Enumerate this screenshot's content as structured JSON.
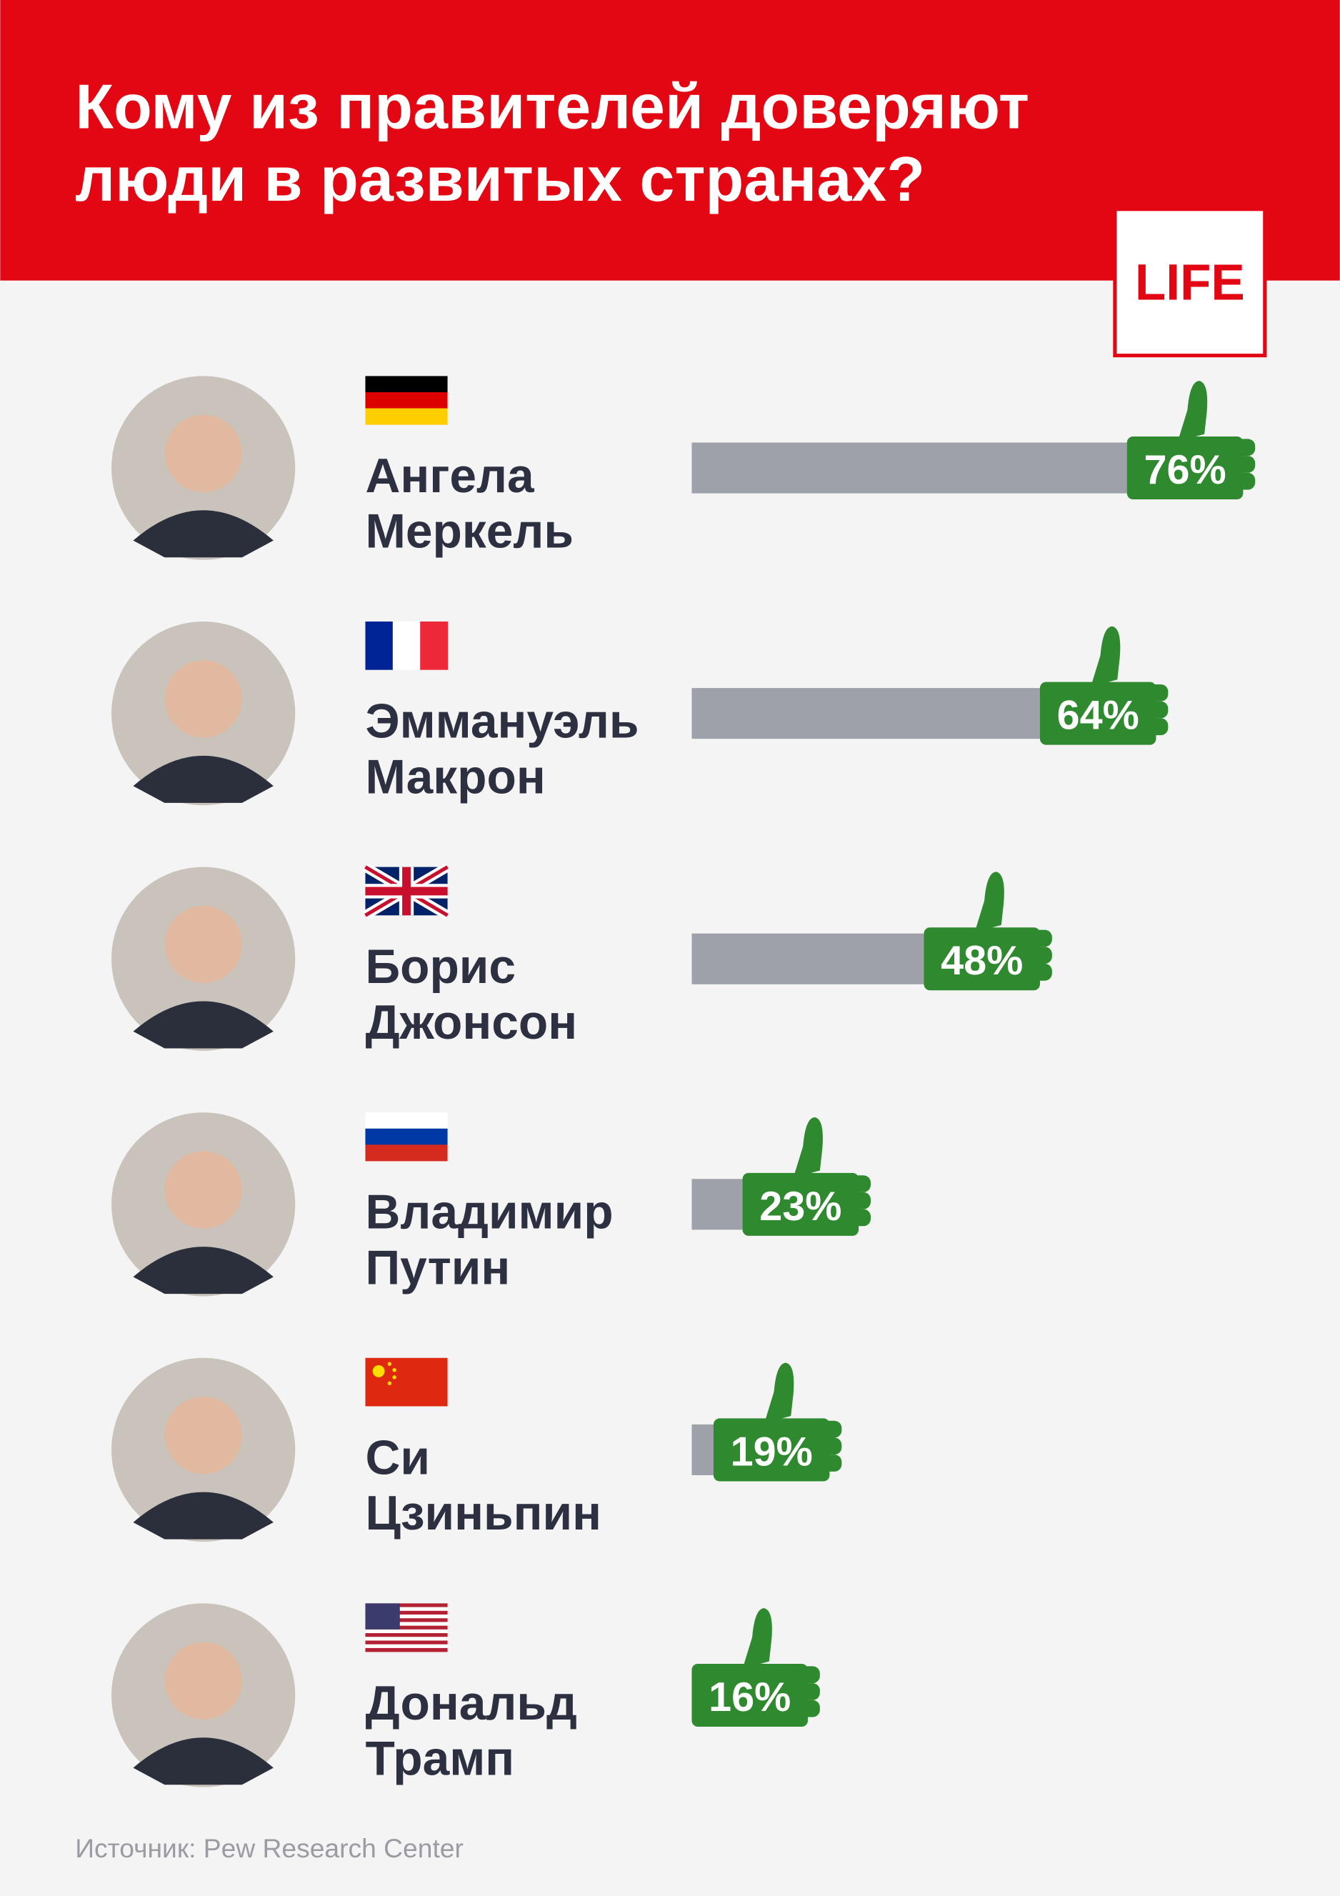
{
  "chart_data": {
    "type": "bar",
    "title": [
      "Кому из правителей доверяют",
      "люди в развитых странах?"
    ],
    "logo": "LIFE",
    "categories": [
      [
        "Ангела",
        "Меркель"
      ],
      [
        "Эммануэль",
        "Макрон"
      ],
      [
        "Борис",
        "Джонсон"
      ],
      [
        "Владимир",
        "Путин"
      ],
      [
        "Си",
        "Цзиньпин"
      ],
      [
        "Дональд",
        "Трамп"
      ]
    ],
    "values": [
      76,
      64,
      48,
      23,
      19,
      16
    ],
    "value_labels": [
      "76%",
      "64%",
      "48%",
      "23%",
      "19%",
      "16%"
    ],
    "color": "#9fa1aa",
    "badge_color": "#2f8a2f",
    "source": "Источник: Pew Research Center"
  }
}
